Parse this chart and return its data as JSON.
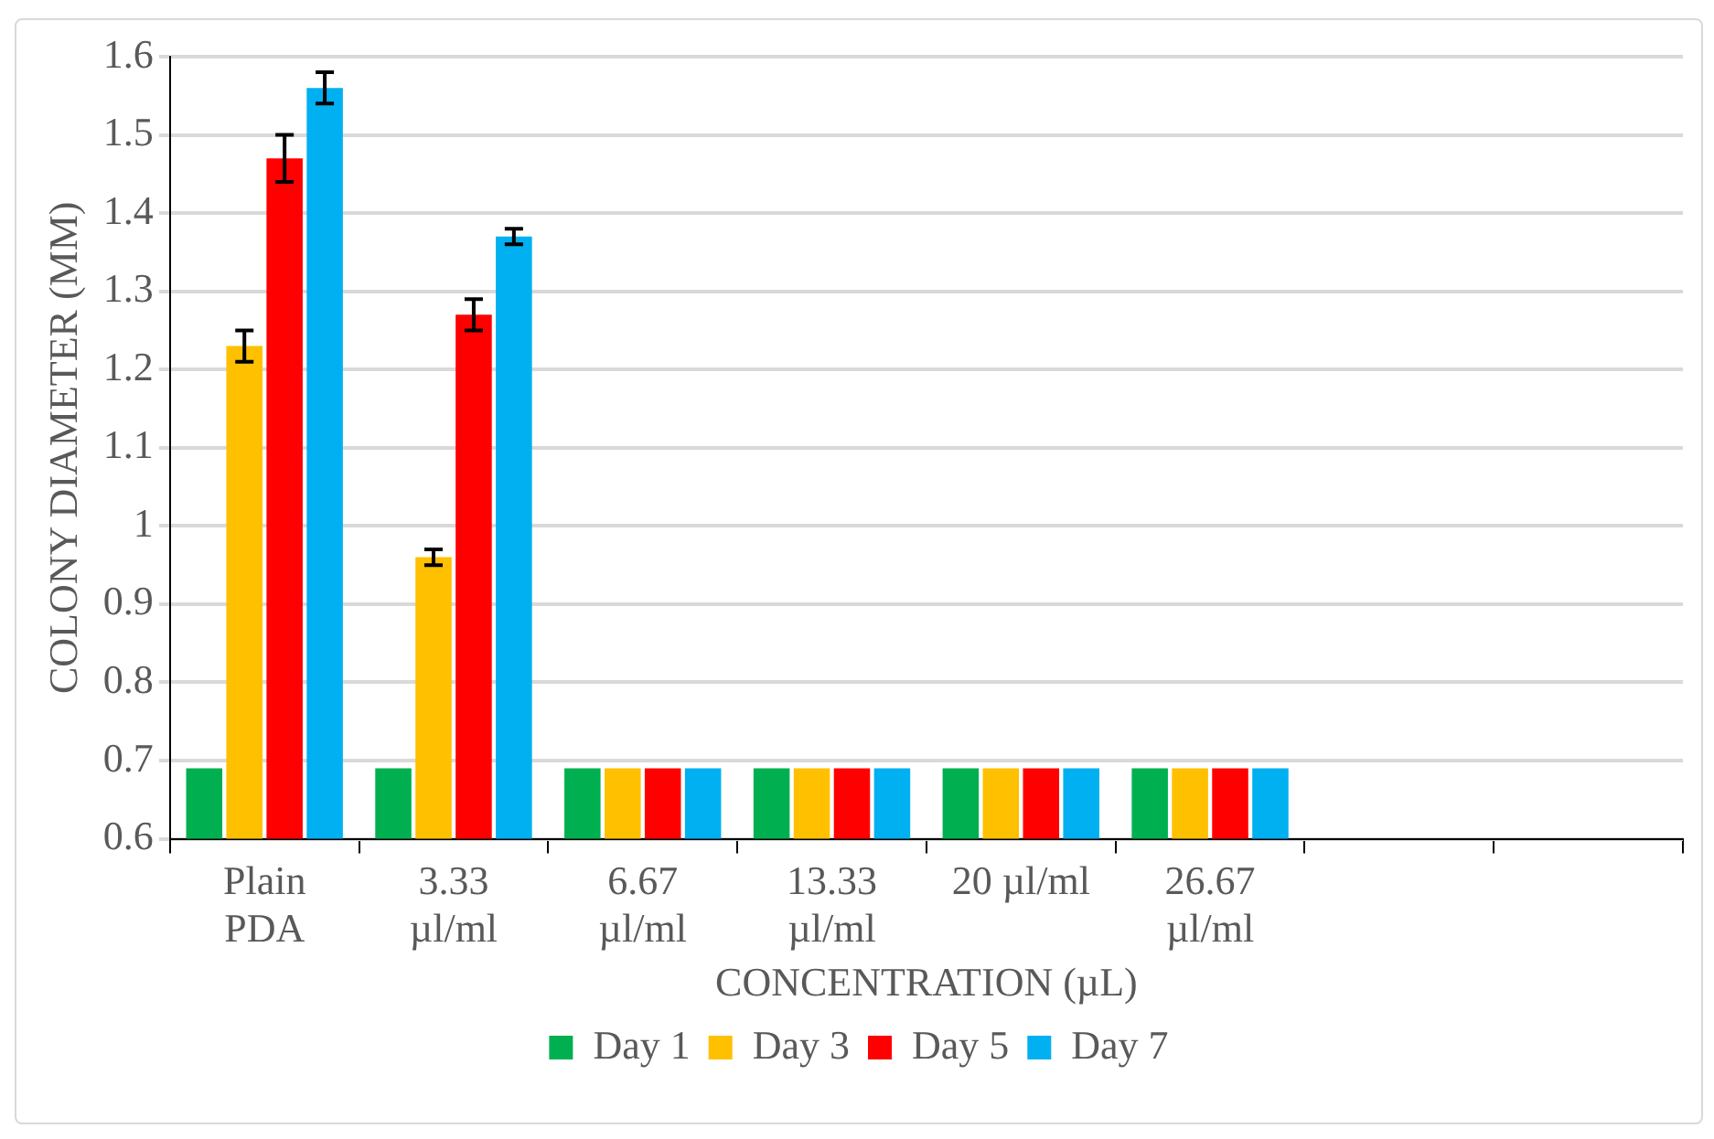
{
  "chart_data": {
    "type": "bar",
    "xlabel": "CONCENTRATION (µL)",
    "ylabel": "COLONY DIAMETER (MM)",
    "categories": [
      "Plain\nPDA",
      "3.33\nµl/ml",
      "6.67\nµl/ml",
      "13.33\nµl/ml",
      "20 µl/ml",
      "26.67\nµl/ml",
      null,
      null
    ],
    "series": [
      {
        "name": "Day 1",
        "color": "#00b050",
        "values": [
          0.69,
          0.69,
          0.69,
          0.69,
          0.69,
          0.69,
          null,
          null
        ]
      },
      {
        "name": "Day 3",
        "color": "#ffc000",
        "values": [
          1.23,
          0.96,
          0.69,
          0.69,
          0.69,
          0.69,
          null,
          null
        ],
        "errors": [
          0.02,
          0.01,
          null,
          null,
          null,
          null,
          null,
          null
        ]
      },
      {
        "name": "Day 5",
        "color": "#ff0000",
        "values": [
          1.47,
          1.27,
          0.69,
          0.69,
          0.69,
          0.69,
          null,
          null
        ],
        "errors": [
          0.03,
          0.02,
          null,
          null,
          null,
          null,
          null,
          null
        ]
      },
      {
        "name": "Day 7",
        "color": "#00b0f0",
        "values": [
          1.56,
          1.37,
          0.69,
          0.69,
          0.69,
          0.69,
          null,
          null
        ],
        "errors": [
          0.02,
          0.01,
          null,
          null,
          null,
          null,
          null,
          null
        ]
      }
    ],
    "ylim": [
      0.6,
      1.6
    ],
    "yticks": [
      0.6,
      0.7,
      0.8,
      0.9,
      1,
      1.1,
      1.2,
      1.3,
      1.4,
      1.5,
      1.6
    ],
    "grid": "y",
    "legend": "bottom"
  }
}
